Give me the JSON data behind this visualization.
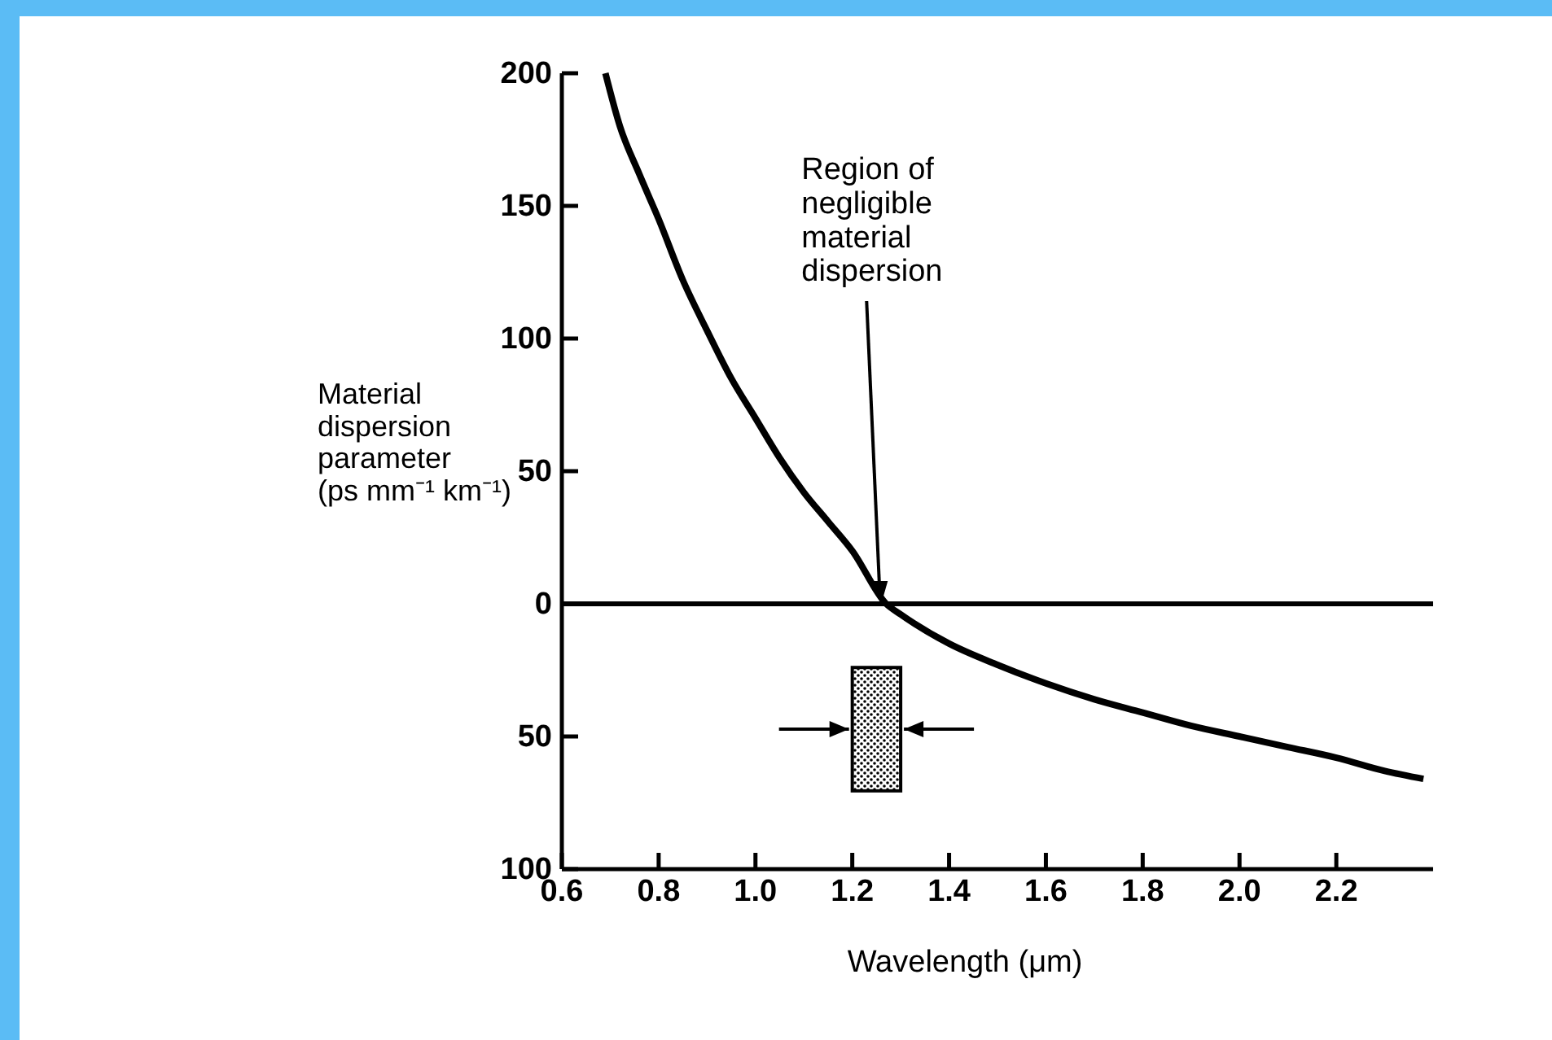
{
  "chart_data": {
    "type": "line",
    "xlabel": "Wavelength (μm)",
    "ylabel": "Material dispersion parameter (ps mm⁻¹ km⁻¹)",
    "x": [
      0.69,
      0.72,
      0.76,
      0.8,
      0.85,
      0.9,
      0.95,
      1.0,
      1.05,
      1.1,
      1.15,
      1.2,
      1.27,
      1.3,
      1.4,
      1.5,
      1.6,
      1.7,
      1.8,
      1.9,
      2.0,
      2.1,
      2.2,
      2.3,
      2.38
    ],
    "series": [
      {
        "color": "#000000",
        "values": [
          200,
          180,
          162,
          145,
          122,
          103,
          85,
          70,
          55,
          42,
          31,
          20,
          0,
          -4,
          -15,
          -23,
          -30,
          -36,
          -41,
          -46,
          -50,
          -54,
          -58,
          -63,
          -66
        ]
      }
    ],
    "xlim": [
      0.6,
      2.4
    ],
    "ylim": [
      -100,
      200
    ],
    "xticks": [
      {
        "value": 0.6,
        "label": "0.6"
      },
      {
        "value": 0.8,
        "label": "0.8"
      },
      {
        "value": 1.0,
        "label": "1.0"
      },
      {
        "value": 1.2,
        "label": "1.2"
      },
      {
        "value": 1.4,
        "label": "1.4"
      },
      {
        "value": 1.6,
        "label": "1.6"
      },
      {
        "value": 1.8,
        "label": "1.8"
      },
      {
        "value": 2.0,
        "label": "2.0"
      },
      {
        "value": 2.2,
        "label": "2.2"
      }
    ],
    "yticks": [
      {
        "value": -100,
        "label": "100"
      },
      {
        "value": -50,
        "label": "50"
      },
      0,
      50,
      100,
      150,
      200
    ],
    "ref_lines": [
      {
        "axis": "y",
        "value": 0,
        "color": "#000000"
      }
    ],
    "bands": [
      {
        "axis": "x",
        "from": 1.2,
        "to": 1.3
      }
    ],
    "annotations": [
      {
        "text": "Region of negligible material dispersion",
        "x": 1.27,
        "y": 0
      }
    ],
    "grid": false,
    "marker": "none",
    "line_style": "solid"
  }
}
